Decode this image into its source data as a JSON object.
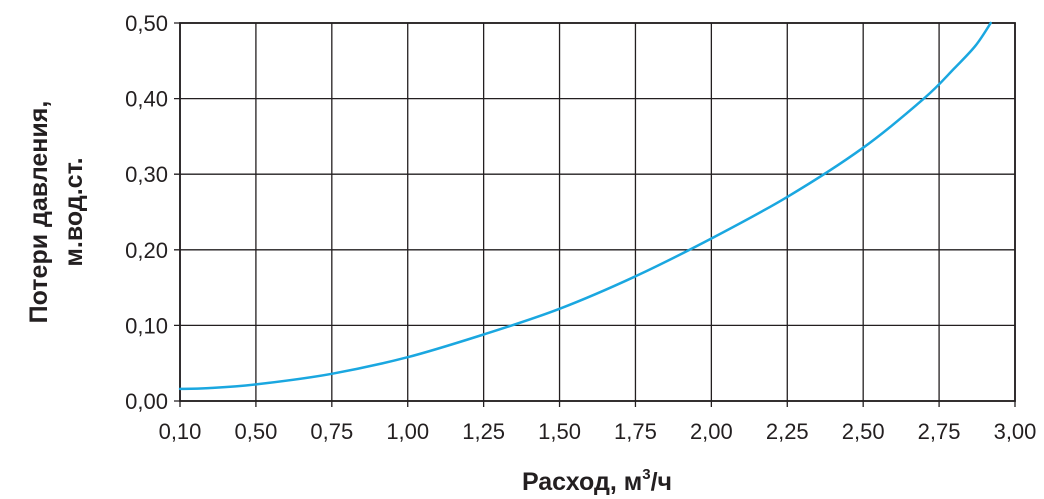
{
  "chart_data": {
    "type": "line",
    "title": "",
    "xlabel": "Расход, м",
    "xlabel_sup": "3",
    "xlabel_tail": "/ч",
    "ylabel": [
      "Потери давления,",
      "м.вод.ст."
    ],
    "x_ticks": [
      "0,10",
      "0,50",
      "0,75",
      "1,00",
      "1,25",
      "1,50",
      "1,75",
      "2,00",
      "2,25",
      "2,50",
      "2,75",
      "3,00"
    ],
    "x_tick_values": [
      0.1,
      0.5,
      0.75,
      1.0,
      1.25,
      1.5,
      1.75,
      2.0,
      2.25,
      2.5,
      2.75,
      3.0
    ],
    "y_ticks": [
      "0,00",
      "0,10",
      "0,20",
      "0,30",
      "0,40",
      "0,50"
    ],
    "y_tick_values": [
      0.0,
      0.1,
      0.2,
      0.3,
      0.4,
      0.5
    ],
    "ylim": [
      0,
      0.5
    ],
    "grid": true,
    "legend": "none",
    "colors": {
      "line": "#1aa7e0",
      "axes": "#231f20"
    },
    "series": [
      {
        "x": [
          0.1,
          0.25,
          0.5,
          0.75,
          1.0,
          1.25,
          1.5,
          1.75,
          2.0,
          2.25,
          2.5,
          2.7,
          2.8,
          2.87,
          2.92
        ],
        "y": [
          0.016,
          0.017,
          0.022,
          0.036,
          0.058,
          0.088,
          0.122,
          0.165,
          0.215,
          0.27,
          0.335,
          0.4,
          0.44,
          0.47,
          0.5
        ]
      }
    ]
  }
}
